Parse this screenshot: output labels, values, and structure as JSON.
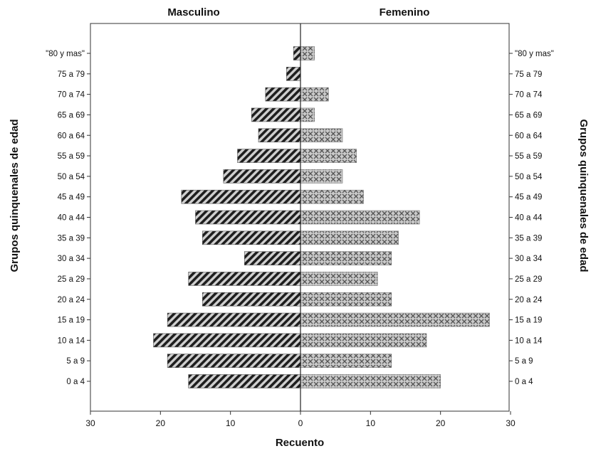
{
  "chart_data": {
    "type": "bar",
    "orientation": "horizontal",
    "layout": "population-pyramid",
    "left_title": "Masculino",
    "right_title": "Femenino",
    "xlabel": "Recuento",
    "ylabel": "Grupos quinquenales de edad",
    "xlim": [
      0,
      30
    ],
    "xticks": [
      30,
      20,
      10,
      0,
      10,
      20,
      30
    ],
    "categories": [
      "0 a 4",
      "5 a 9",
      "10 a 14",
      "15 a 19",
      "20 a 24",
      "25 a 29",
      "30 a 34",
      "35 a 39",
      "40 a 44",
      "45 a 49",
      "50 a 54",
      "55 a 59",
      "60 a 64",
      "65 a 69",
      "70 a 74",
      "75 a 79",
      "\"80 y mas\""
    ],
    "series": [
      {
        "name": "Masculino",
        "values": [
          16,
          19,
          21,
          19,
          14,
          16,
          8,
          14,
          15,
          17,
          11,
          9,
          6,
          7,
          5,
          2,
          1
        ],
        "pattern": "diagonal-hatch"
      },
      {
        "name": "Femenino",
        "values": [
          20,
          13,
          18,
          27,
          13,
          11,
          13,
          14,
          17,
          9,
          6,
          8,
          6,
          2,
          4,
          0,
          2
        ],
        "pattern": "crosshatch"
      }
    ],
    "grid": false,
    "legend": "none",
    "colors": {
      "bar_fill": "#c8c8c8",
      "hatch": "#222222",
      "frame": "#333333"
    }
  }
}
